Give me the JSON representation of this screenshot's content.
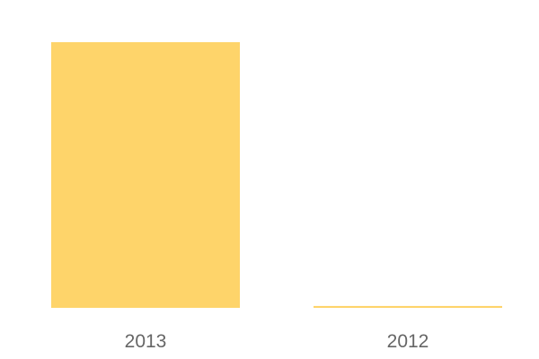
{
  "chart_data": {
    "type": "bar",
    "categories": [
      "2013",
      "2012"
    ],
    "values": [
      100,
      0.7
    ],
    "title": "",
    "xlabel": "",
    "ylabel": "",
    "ylim": [
      0,
      100
    ],
    "grid": false,
    "legend": "none",
    "bar_color": "#fed46a",
    "label_color": "#666666"
  }
}
